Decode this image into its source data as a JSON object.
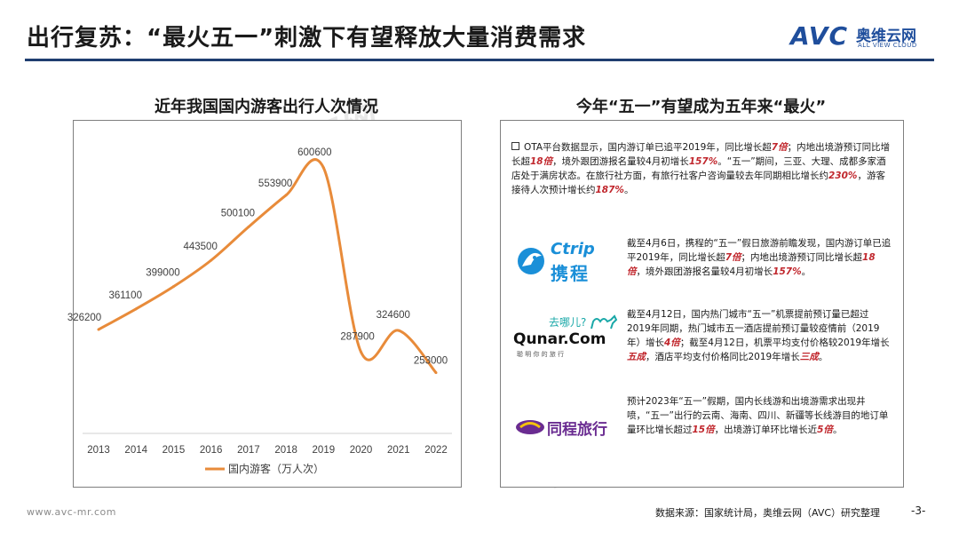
{
  "header": {
    "title": "出行复苏：“最火五一”刺激下有望释放大量消费需求",
    "logo_avc": "AVC",
    "logo_cn": "奥维云网",
    "logo_en": "ALL VIEW CLOUD"
  },
  "left_panel": {
    "title": "近年我国国内游客出行人次情况"
  },
  "right_panel": {
    "title": "今年“五一”有望成为五年来“最火”",
    "intro": {
      "segments": [
        {
          "t": "OTA平台数据显示，国内游订单已追平2019年，同比增长超"
        },
        {
          "t": "7倍",
          "em": true
        },
        {
          "t": "；内地出境游预订同比增长超"
        },
        {
          "t": "18倍",
          "em": true
        },
        {
          "t": "，境外跟团游报名量较4月初增长"
        },
        {
          "t": "157%",
          "em": true
        },
        {
          "t": "。“五一”期间，三亚、大理、成都多家酒店处于满房状态。在旅行社方面，有旅行社客户咨询量较去年同期相比增长约"
        },
        {
          "t": "230%",
          "em": true
        },
        {
          "t": "，游客接待人次预计增长约"
        },
        {
          "t": "187%",
          "em": true
        },
        {
          "t": "。"
        }
      ]
    },
    "ctrip": {
      "brand_en": "Ctrip",
      "brand_cn": "携程",
      "segments": [
        {
          "t": "截至4月6日，携程的“五一”假日旅游前瞻发现，国内游订单已追平2019年，同比增长超"
        },
        {
          "t": "7倍",
          "em": true
        },
        {
          "t": "；内地出境游预订同比增长超"
        },
        {
          "t": "18倍",
          "em": true
        },
        {
          "t": "，境外跟团游报名量较4月初增长"
        },
        {
          "t": "157%",
          "em": true
        },
        {
          "t": "。"
        }
      ]
    },
    "qunar": {
      "brand_top": "去哪儿?",
      "brand_en": "Qunar.Com",
      "brand_sub": "聪 明 你 的 旅 行",
      "segments": [
        {
          "t": "截至4月12日，国内热门城市“五一”机票提前预订量已超过2019年同期，热门城市五一酒店提前预订量较疫情前（2019年）增长"
        },
        {
          "t": "4倍",
          "em": true
        },
        {
          "t": "；截至4月12日，机票平均支付价格较2019年增长"
        },
        {
          "t": "五成",
          "em": true
        },
        {
          "t": "，酒店平均支付价格同比2019年增长"
        },
        {
          "t": "三成",
          "em": true
        },
        {
          "t": "。"
        }
      ]
    },
    "tongcheng": {
      "brand_cn": "同程旅行",
      "segments": [
        {
          "t": "预计2023年“五一”假期，国内长线游和出境游需求出现井喷，“五一”出行的云南、海南、四川、新疆等长线游目的地订单量环比增长超过"
        },
        {
          "t": "15倍",
          "em": true
        },
        {
          "t": "，出境游订单环比增长近"
        },
        {
          "t": "5倍",
          "em": true
        },
        {
          "t": "。"
        }
      ]
    }
  },
  "footer": {
    "website": "www.avc-mr.com",
    "source": "数据来源：国家统计局，奥维云网（AVC）研究整理",
    "page": "-3-"
  },
  "colors": {
    "line": "#e88b3a",
    "accent": "#c0262c",
    "brand_blue": "#1f4e9c",
    "rule": "#1f3e70"
  },
  "chart_data": {
    "type": "line",
    "categories": [
      "2013",
      "2014",
      "2015",
      "2016",
      "2017",
      "2018",
      "2019",
      "2020",
      "2021",
      "2022"
    ],
    "series": [
      {
        "name": "国内游客（万人次）",
        "values": [
          326200,
          361100,
          399000,
          443500,
          500100,
          553900,
          600600,
          287900,
          324600,
          253000
        ]
      }
    ],
    "data_labels": [
      "326200",
      "361100",
      "399000",
      "443500",
      "500100",
      "553900",
      "600600",
      "287900",
      "324600",
      "253000"
    ],
    "ylim": [
      150000,
      650000
    ],
    "grid": false,
    "legend": "bottom",
    "smooth": true
  }
}
